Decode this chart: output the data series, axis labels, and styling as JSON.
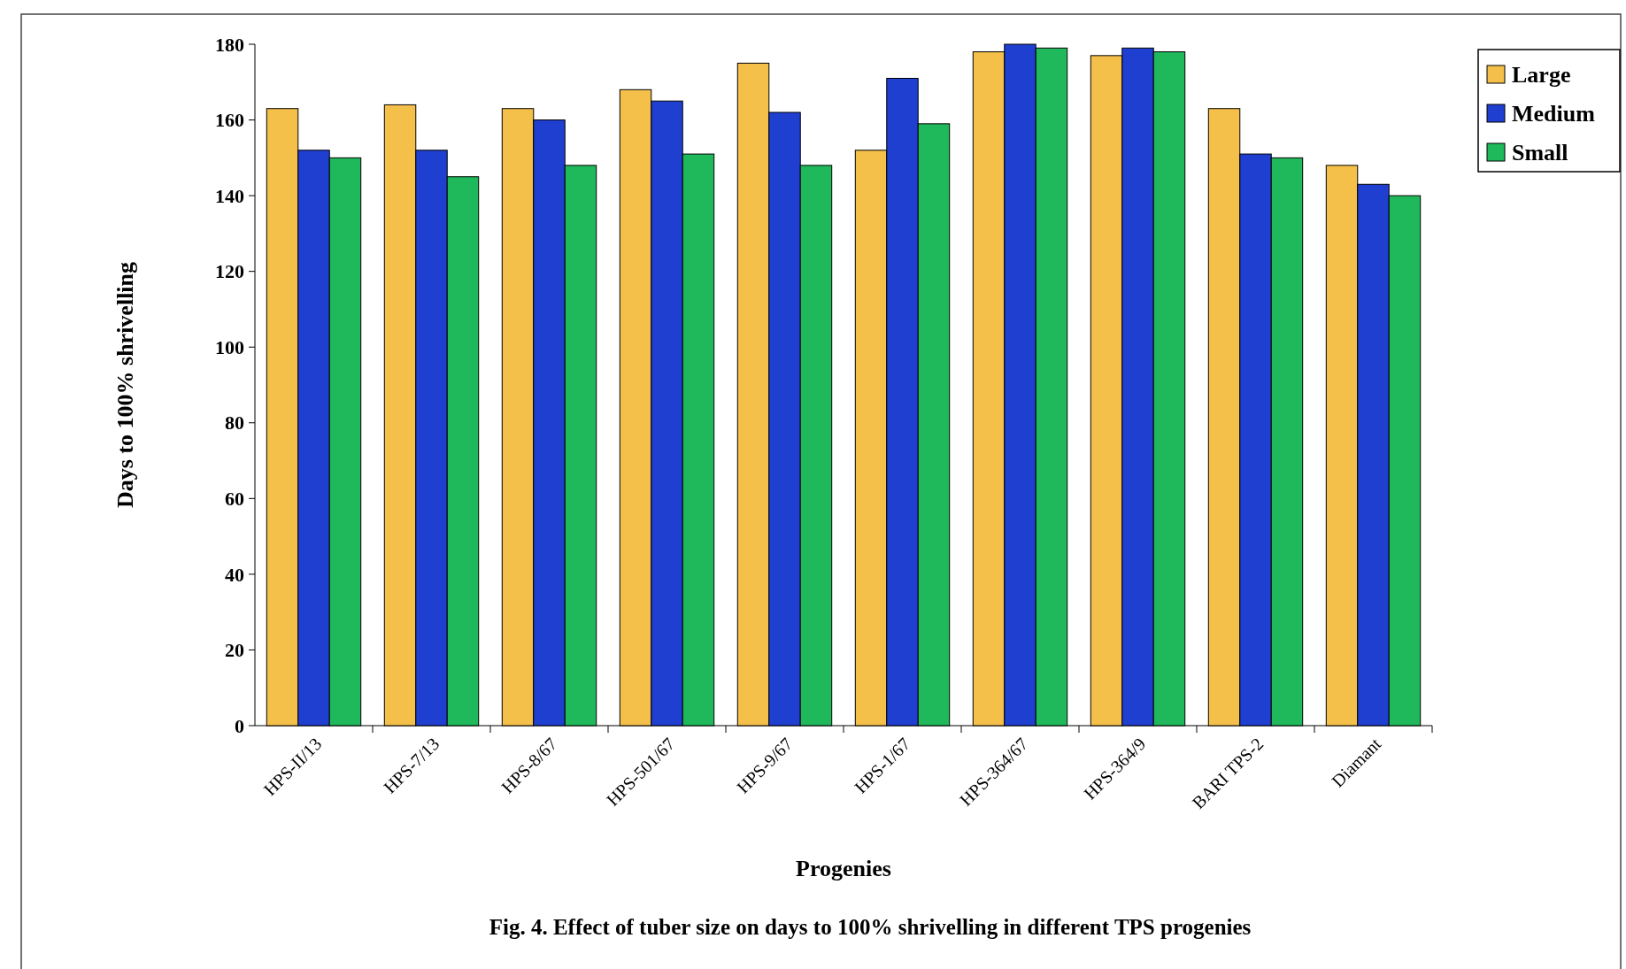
{
  "chart_data": {
    "type": "bar",
    "title": "Fig. 4. Effect of tuber size on days to 100% shrivelling in different TPS progenies",
    "xlabel": "Progenies",
    "ylabel": "Days to 100% shrivelling",
    "categories": [
      "HPS-II/13",
      "HPS-7/13",
      "HPS-8/67",
      "HPS-501/67",
      "HPS-9/67",
      "HPS-1/67",
      "HPS-364/67",
      "HPS-364/9",
      "BARI TPS-2",
      "Diamant"
    ],
    "series": [
      {
        "name": "Large",
        "color": "#f5c04a",
        "values": [
          163,
          164,
          163,
          168,
          175,
          152,
          178,
          177,
          163,
          148
        ]
      },
      {
        "name": "Medium",
        "color": "#1f3fd0",
        "values": [
          152,
          152,
          160,
          165,
          162,
          171,
          180,
          179,
          151,
          143
        ]
      },
      {
        "name": "Small",
        "color": "#1fb85a",
        "values": [
          150,
          145,
          148,
          151,
          148,
          159,
          179,
          178,
          150,
          140
        ]
      }
    ],
    "ylim": [
      0,
      180
    ],
    "yticks": [
      0,
      20,
      40,
      60,
      80,
      100,
      120,
      140,
      160,
      180
    ],
    "grid": false,
    "legend": "top right"
  }
}
